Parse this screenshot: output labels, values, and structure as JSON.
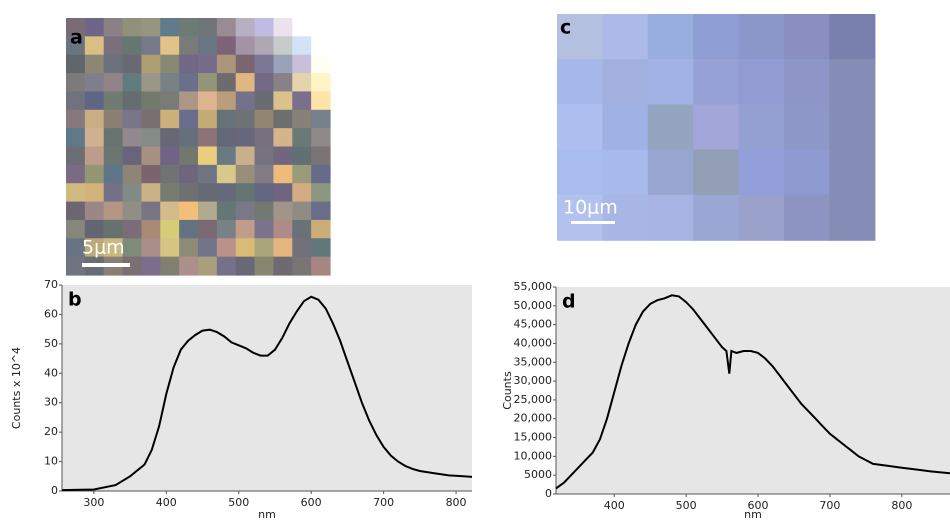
{
  "images": [
    {
      "label": "a",
      "scale_bar": "5μm"
    },
    {
      "label": "c",
      "scale_bar": "10μm"
    }
  ],
  "chart_data": [
    {
      "type": "line",
      "panel_label": "b",
      "y_label": "Counts x 10^4",
      "x_label": "nm",
      "color": "#000000",
      "x": [
        256,
        300,
        330,
        350,
        370,
        380,
        390,
        400,
        410,
        420,
        430,
        440,
        450,
        460,
        470,
        480,
        490,
        500,
        510,
        520,
        530,
        540,
        550,
        560,
        570,
        580,
        590,
        600,
        610,
        620,
        630,
        640,
        650,
        660,
        670,
        680,
        690,
        700,
        710,
        720,
        730,
        740,
        750,
        770,
        790,
        810,
        822
      ],
      "values": [
        0.3,
        0.5,
        2,
        5,
        9,
        14,
        22,
        33,
        42,
        48,
        51,
        53,
        54.5,
        54.8,
        54,
        52.5,
        50.5,
        49.5,
        48.5,
        47,
        46,
        46,
        48,
        52,
        57,
        61,
        64.5,
        66,
        65,
        62,
        57,
        51,
        44,
        37,
        30,
        24,
        19,
        15,
        12,
        10,
        8.5,
        7.5,
        6.8,
        6,
        5.3,
        5,
        4.8
      ],
      "xlim": [
        256,
        822
      ],
      "xticks": [
        300,
        400,
        500,
        600,
        700,
        800
      ],
      "ylim": [
        0,
        70
      ],
      "yticks": [
        0,
        10,
        20,
        30,
        40,
        50,
        60,
        70
      ]
    },
    {
      "type": "line",
      "panel_label": "d",
      "y_label": "Counts",
      "x_label": "nm",
      "color": "#000000",
      "x": [
        319,
        330,
        340,
        350,
        360,
        370,
        380,
        390,
        400,
        410,
        420,
        430,
        440,
        450,
        460,
        470,
        480,
        490,
        500,
        510,
        520,
        530,
        540,
        550,
        556,
        560,
        563,
        570,
        580,
        590,
        600,
        610,
        620,
        630,
        640,
        650,
        660,
        670,
        680,
        690,
        700,
        710,
        720,
        730,
        740,
        750,
        760,
        780,
        800,
        820,
        840,
        867
      ],
      "values": [
        1500,
        3000,
        5000,
        7000,
        9000,
        11000,
        14500,
        20000,
        27000,
        34000,
        40000,
        45000,
        48500,
        50500,
        51500,
        52000,
        52800,
        52500,
        51000,
        49000,
        46500,
        44000,
        41500,
        39000,
        38000,
        32000,
        38000,
        37500,
        38000,
        38000,
        37500,
        36000,
        34000,
        31500,
        29000,
        26500,
        24000,
        22000,
        20000,
        18000,
        16000,
        14500,
        13000,
        11500,
        10000,
        9000,
        8000,
        7500,
        7000,
        6500,
        6000,
        5500
      ],
      "xlim": [
        319,
        867
      ],
      "xticks": [
        400,
        500,
        600,
        700,
        800
      ],
      "ylim": [
        0,
        55000
      ],
      "yticks": [
        0,
        {
          "value": 5000,
          "label": "5000"
        },
        {
          "value": 10000,
          "label": "10,000"
        },
        {
          "value": 15000,
          "label": "15,000"
        },
        {
          "value": 20000,
          "label": "20,000"
        },
        {
          "value": 25000,
          "label": "25,000"
        },
        {
          "value": 30000,
          "label": "30,000"
        },
        {
          "value": 35000,
          "label": "35,000"
        },
        {
          "value": 40000,
          "label": "40,000"
        },
        {
          "value": 45000,
          "label": "45,000"
        },
        {
          "value": 50000,
          "label": "50,000"
        },
        {
          "value": 55000,
          "label": "55,000"
        }
      ]
    }
  ]
}
